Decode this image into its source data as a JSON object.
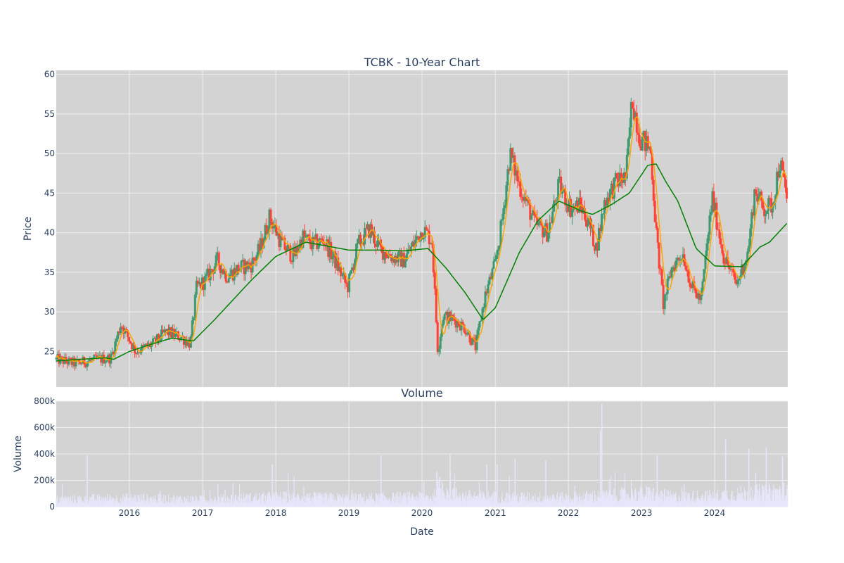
{
  "chart_data": [
    {
      "type": "candlestick",
      "title": "TCBK - 10-Year Chart",
      "ylabel": "Price",
      "ylim": [
        20.5,
        60.5
      ],
      "yticks": [
        25,
        30,
        35,
        40,
        45,
        50,
        55,
        60
      ],
      "xlim": [
        "2015-01-01",
        "2024-12-31"
      ],
      "xticks": [
        "2016",
        "2017",
        "2018",
        "2019",
        "2020",
        "2021",
        "2022",
        "2023",
        "2024"
      ],
      "grid": true,
      "colors": {
        "up": "#3d9970",
        "down": "#ff4136",
        "ma_short": "#ffa500",
        "ma_long": "#008000",
        "plot_bg": "#d3d3d3",
        "grid": "#eeeeee"
      },
      "close_anchors": [
        [
          "2015-01-01",
          24.0
        ],
        [
          "2015-04-01",
          23.5
        ],
        [
          "2015-08-01",
          24.0
        ],
        [
          "2015-10-01",
          24.2
        ],
        [
          "2015-11-20",
          28.5
        ],
        [
          "2016-02-01",
          25.0
        ],
        [
          "2016-05-01",
          26.0
        ],
        [
          "2016-07-01",
          27.5
        ],
        [
          "2016-09-15",
          26.8
        ],
        [
          "2016-11-01",
          26.0
        ],
        [
          "2016-12-01",
          33.0
        ],
        [
          "2017-01-15",
          34.0
        ],
        [
          "2017-03-15",
          36.5
        ],
        [
          "2017-05-01",
          34.5
        ],
        [
          "2017-07-01",
          35.5
        ],
        [
          "2017-09-01",
          36.0
        ],
        [
          "2017-10-15",
          38.0
        ],
        [
          "2017-12-01",
          42.0
        ],
        [
          "2018-02-01",
          38.5
        ],
        [
          "2018-04-01",
          37.0
        ],
        [
          "2018-05-15",
          39.5
        ],
        [
          "2018-07-01",
          38.5
        ],
        [
          "2018-09-01",
          39.0
        ],
        [
          "2018-11-01",
          36.0
        ],
        [
          "2018-12-25",
          33.0
        ],
        [
          "2019-02-15",
          38.5
        ],
        [
          "2019-04-15",
          40.5
        ],
        [
          "2019-06-01",
          38.0
        ],
        [
          "2019-08-01",
          37.0
        ],
        [
          "2019-10-01",
          36.5
        ],
        [
          "2020-01-05",
          40.5
        ],
        [
          "2020-02-20",
          39.0
        ],
        [
          "2020-03-20",
          25.0
        ],
        [
          "2020-04-15",
          29.5
        ],
        [
          "2020-06-10",
          29.0
        ],
        [
          "2020-08-01",
          28.0
        ],
        [
          "2020-09-25",
          25.5
        ],
        [
          "2020-11-10",
          32.0
        ],
        [
          "2020-12-31",
          36.0
        ],
        [
          "2021-02-01",
          41.0
        ],
        [
          "2021-03-15",
          50.0
        ],
        [
          "2021-05-01",
          46.0
        ],
        [
          "2021-07-20",
          41.0
        ],
        [
          "2021-09-20",
          40.0
        ],
        [
          "2021-11-15",
          46.0
        ],
        [
          "2022-01-15",
          43.0
        ],
        [
          "2022-03-01",
          43.5
        ],
        [
          "2022-04-15",
          41.0
        ],
        [
          "2022-05-20",
          38.0
        ],
        [
          "2022-07-01",
          44.0
        ],
        [
          "2022-09-01",
          46.5
        ],
        [
          "2022-10-15",
          47.0
        ],
        [
          "2022-11-15",
          57.0
        ],
        [
          "2022-12-25",
          52.0
        ],
        [
          "2023-02-15",
          50.5
        ],
        [
          "2023-03-15",
          40.0
        ],
        [
          "2023-04-20",
          31.0
        ],
        [
          "2023-06-01",
          35.5
        ],
        [
          "2023-07-25",
          37.5
        ],
        [
          "2023-09-10",
          33.0
        ],
        [
          "2023-10-25",
          31.5
        ],
        [
          "2023-12-20",
          44.5
        ],
        [
          "2024-02-15",
          37.0
        ],
        [
          "2024-04-20",
          33.5
        ],
        [
          "2024-06-15",
          37.5
        ],
        [
          "2024-07-20",
          45.5
        ],
        [
          "2024-09-01",
          43.0
        ],
        [
          "2024-10-15",
          43.5
        ],
        [
          "2024-11-20",
          49.0
        ],
        [
          "2024-12-31",
          44.0
        ]
      ],
      "ma_long_anchors": [
        [
          "2015-01-01",
          23.8
        ],
        [
          "2015-09-01",
          24.2
        ],
        [
          "2015-10-15",
          24.0
        ],
        [
          "2016-01-01",
          25.0
        ],
        [
          "2016-05-01",
          26.0
        ],
        [
          "2016-08-01",
          26.7
        ],
        [
          "2016-11-15",
          26.3
        ],
        [
          "2017-03-01",
          29.0
        ],
        [
          "2017-06-01",
          31.5
        ],
        [
          "2017-09-01",
          34.0
        ],
        [
          "2018-01-01",
          37.0
        ],
        [
          "2018-06-01",
          38.8
        ],
        [
          "2019-01-01",
          37.8
        ],
        [
          "2019-06-01",
          37.8
        ],
        [
          "2019-10-01",
          37.7
        ],
        [
          "2020-02-01",
          38.0
        ],
        [
          "2020-05-01",
          35.5
        ],
        [
          "2020-08-01",
          32.5
        ],
        [
          "2020-11-01",
          29.0
        ],
        [
          "2021-01-01",
          30.5
        ],
        [
          "2021-05-01",
          37.5
        ],
        [
          "2021-08-01",
          41.5
        ],
        [
          "2021-11-15",
          44.0
        ],
        [
          "2022-03-01",
          42.8
        ],
        [
          "2022-05-01",
          42.3
        ],
        [
          "2022-08-01",
          43.5
        ],
        [
          "2022-11-01",
          45.0
        ],
        [
          "2023-02-01",
          48.5
        ],
        [
          "2023-03-15",
          48.7
        ],
        [
          "2023-05-01",
          46.5
        ],
        [
          "2023-07-01",
          44.0
        ],
        [
          "2023-10-01",
          38.0
        ],
        [
          "2024-01-01",
          35.8
        ],
        [
          "2024-05-15",
          35.7
        ],
        [
          "2024-08-15",
          38.2
        ],
        [
          "2024-10-01",
          38.8
        ],
        [
          "2024-12-31",
          41.3
        ]
      ]
    },
    {
      "type": "bar",
      "title": "Volume",
      "xlabel": "Date",
      "ylabel": "Volume",
      "ylim": [
        0,
        800000
      ],
      "yticks": [
        0,
        200000,
        400000,
        600000,
        800000
      ],
      "ytick_labels": [
        "0",
        "200k",
        "400k",
        "600k",
        "800k"
      ],
      "xlim": [
        "2015-01-01",
        "2024-12-31"
      ],
      "xticks": [
        "2016",
        "2017",
        "2018",
        "2019",
        "2020",
        "2021",
        "2022",
        "2023",
        "2024"
      ],
      "grid": true,
      "colors": {
        "bar": "#e6e6fa",
        "plot_bg": "#d3d3d3",
        "grid": "#eeeeee"
      },
      "baseline_anchors": [
        [
          "2015-01-01",
          60000
        ],
        [
          "2016-01-01",
          70000
        ],
        [
          "2017-01-01",
          60000
        ],
        [
          "2018-01-01",
          80000
        ],
        [
          "2019-01-01",
          70000
        ],
        [
          "2020-03-01",
          80000
        ],
        [
          "2020-04-01",
          170000
        ],
        [
          "2020-07-01",
          90000
        ],
        [
          "2021-01-01",
          80000
        ],
        [
          "2022-01-01",
          75000
        ],
        [
          "2023-03-01",
          110000
        ],
        [
          "2023-06-01",
          80000
        ],
        [
          "2024-01-01",
          90000
        ],
        [
          "2024-06-01",
          110000
        ],
        [
          "2024-12-31",
          130000
        ]
      ],
      "spikes": [
        [
          "2015-06-05",
          390000
        ],
        [
          "2017-12-15",
          320000
        ],
        [
          "2019-06-10",
          390000
        ],
        [
          "2020-03-15",
          270000
        ],
        [
          "2020-05-20",
          400000
        ],
        [
          "2020-11-20",
          320000
        ],
        [
          "2021-01-10",
          320000
        ],
        [
          "2021-04-10",
          360000
        ],
        [
          "2021-09-10",
          350000
        ],
        [
          "2022-06-10",
          580000
        ],
        [
          "2022-06-17",
          780000
        ],
        [
          "2023-03-20",
          390000
        ],
        [
          "2024-02-25",
          510000
        ],
        [
          "2024-06-20",
          440000
        ],
        [
          "2024-09-15",
          450000
        ],
        [
          "2024-12-05",
          380000
        ]
      ]
    }
  ]
}
